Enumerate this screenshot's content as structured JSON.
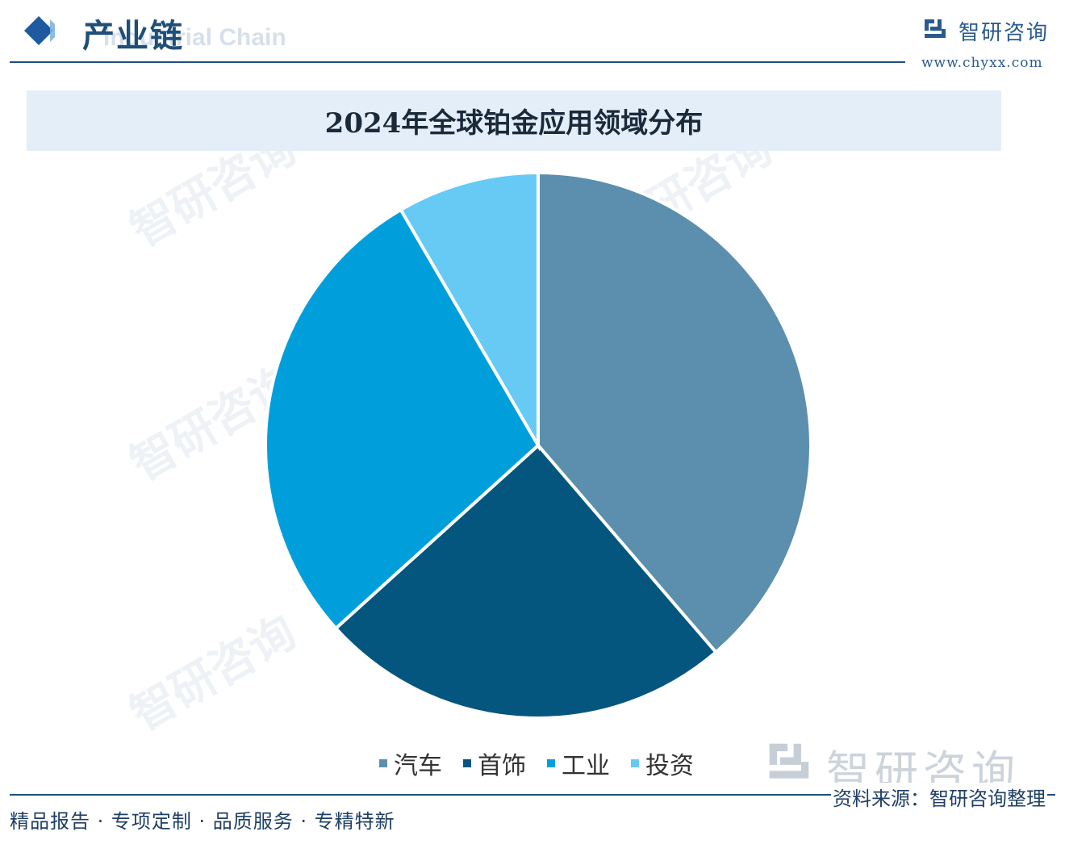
{
  "header": {
    "title": "产业链",
    "subtitle": "Industrial Chain",
    "logo_text": "智研咨询",
    "logo_url": "www.chyxx.com"
  },
  "watermark": {
    "text": "智研咨询"
  },
  "chart_data": {
    "type": "pie",
    "title": "2024年全球铂金应用领域分布",
    "categories": [
      "汽车",
      "首饰",
      "工业",
      "投资"
    ],
    "values": [
      38.7,
      24.6,
      28.3,
      8.4
    ],
    "colors": [
      "#5b8fad",
      "#05567f",
      "#009fdc",
      "#66caf5"
    ],
    "legend_position": "bottom"
  },
  "footer": {
    "left_text": "精品报告 · 专项定制 · 品质服务 · 专精特新",
    "source_text": "资料来源：智研咨询整理"
  }
}
